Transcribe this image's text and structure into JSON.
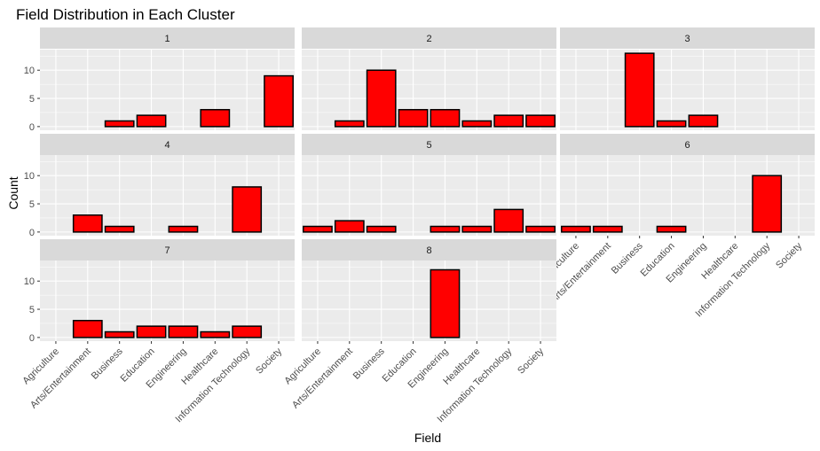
{
  "chart_data": {
    "type": "bar",
    "title": "Field Distribution in Each Cluster",
    "xlabel": "Field",
    "ylabel": "Count",
    "ylim": [
      -0.65,
      13.65
    ],
    "yticks": [
      0,
      5,
      10
    ],
    "categories": [
      "Agriculture",
      "Arts/Entertainment",
      "Business",
      "Education",
      "Engineering",
      "Healthcare",
      "Information Technology",
      "Society"
    ],
    "bar_color": "#ff0000",
    "bar_outline": "#000000",
    "panel_bg": "#ebebeb",
    "strip_bg": "#d9d9d9",
    "grid": true,
    "facet_layout": {
      "rows": 3,
      "cols": 3
    },
    "panels": [
      {
        "label": "1",
        "values": [
          0,
          0,
          1,
          2,
          0,
          3,
          0,
          9
        ]
      },
      {
        "label": "2",
        "values": [
          0,
          1,
          10,
          3,
          3,
          1,
          2,
          2
        ]
      },
      {
        "label": "3",
        "values": [
          0,
          0,
          13,
          1,
          2,
          0,
          0,
          0
        ]
      },
      {
        "label": "4",
        "values": [
          0,
          3,
          1,
          0,
          1,
          0,
          8,
          0
        ]
      },
      {
        "label": "5",
        "values": [
          1,
          2,
          1,
          0,
          1,
          1,
          4,
          1
        ]
      },
      {
        "label": "6",
        "values": [
          1,
          1,
          0,
          1,
          0,
          0,
          10,
          0
        ]
      },
      {
        "label": "7",
        "values": [
          0,
          3,
          1,
          2,
          2,
          1,
          2,
          0
        ]
      },
      {
        "label": "8",
        "values": [
          0,
          0,
          0,
          0,
          12,
          0,
          0,
          0
        ]
      }
    ]
  }
}
